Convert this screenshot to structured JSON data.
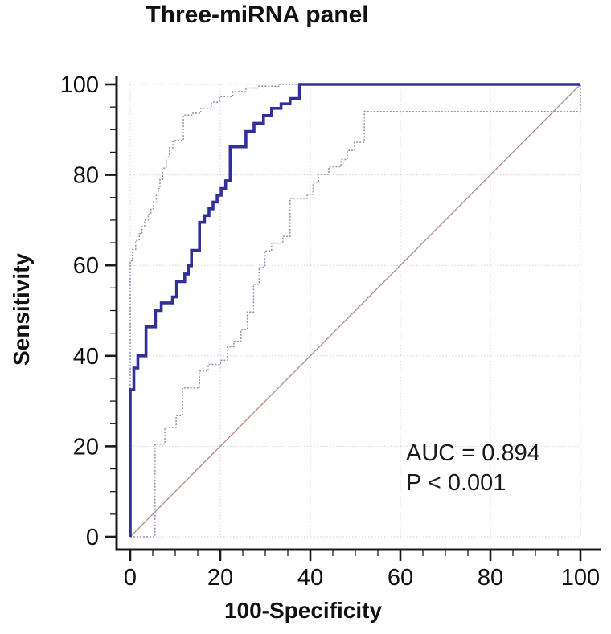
{
  "chart_data": {
    "type": "line",
    "subtype": "roc-curve-with-95ci-bands",
    "title": "Three-miRNA panel",
    "xlabel": "100-Specificity",
    "ylabel": "Sensitivity",
    "xlim": [
      0,
      100
    ],
    "ylim": [
      0,
      100
    ],
    "x_ticks": [
      0,
      20,
      40,
      60,
      80,
      100
    ],
    "y_ticks": [
      0,
      20,
      40,
      60,
      80,
      100
    ],
    "x_tick_labels": [
      "0",
      "20",
      "40",
      "60",
      "80",
      "100"
    ],
    "y_tick_labels": [
      "0",
      "20",
      "40",
      "60",
      "80",
      "100"
    ],
    "minor_tick_step": 5,
    "grid": "dotted-at-major-ticks",
    "legend_position": "none",
    "annotation": {
      "auc_label": "AUC = 0.894",
      "p_label": "P < 0.001"
    },
    "colors": {
      "roc_curve": "#31309b",
      "ci_band": "#8f8fb8",
      "diagonal": "#bc8f8f",
      "gridline": "#cfcfd6",
      "axis": "#1a1a1a",
      "text": "#111111",
      "background": "#ffffff"
    },
    "series": [
      {
        "name": "chance-diagonal",
        "style": "solid-thin",
        "color": "#bc8f8f",
        "width": 1.4,
        "points": [
          [
            0,
            0
          ],
          [
            100,
            100
          ]
        ]
      },
      {
        "name": "upper-95ci-band",
        "style": "dotted",
        "color": "#8f8fb8",
        "width": 1.5,
        "points": [
          [
            0,
            0
          ],
          [
            0,
            61
          ],
          [
            0.5,
            61
          ],
          [
            0.5,
            63.5
          ],
          [
            1.2,
            63.5
          ],
          [
            1.2,
            65.5
          ],
          [
            2,
            65.5
          ],
          [
            2,
            67
          ],
          [
            2.6,
            67
          ],
          [
            2.6,
            68.5
          ],
          [
            3.2,
            68.5
          ],
          [
            3.2,
            70
          ],
          [
            4,
            70
          ],
          [
            4,
            71.3
          ],
          [
            4.6,
            71.3
          ],
          [
            4.6,
            72.5
          ],
          [
            5.2,
            72.5
          ],
          [
            5.2,
            74
          ],
          [
            5.8,
            74
          ],
          [
            5.8,
            75.5
          ],
          [
            6.2,
            75.5
          ],
          [
            6.2,
            77
          ],
          [
            6.6,
            77
          ],
          [
            6.6,
            79
          ],
          [
            7.2,
            79
          ],
          [
            7.2,
            81.5
          ],
          [
            8,
            81.5
          ],
          [
            8,
            84
          ],
          [
            8.7,
            84
          ],
          [
            8.7,
            86
          ],
          [
            9.5,
            86
          ],
          [
            9.5,
            87.6
          ],
          [
            11.8,
            87.6
          ],
          [
            11.8,
            93.2
          ],
          [
            13.9,
            93.2
          ],
          [
            13.9,
            93.6
          ],
          [
            15.7,
            93.6
          ],
          [
            15.7,
            94.7
          ],
          [
            18,
            94.7
          ],
          [
            18,
            96.1
          ],
          [
            19.8,
            96.1
          ],
          [
            19.8,
            97.3
          ],
          [
            22.8,
            97.3
          ],
          [
            22.8,
            98.4
          ],
          [
            25.7,
            98.4
          ],
          [
            25.7,
            99.2
          ],
          [
            28.5,
            99.2
          ],
          [
            28.5,
            99.6
          ],
          [
            33,
            99.6
          ],
          [
            33,
            100
          ],
          [
            100,
            100
          ]
        ]
      },
      {
        "name": "lower-95ci-band",
        "style": "dotted",
        "color": "#8f8fb8",
        "width": 1.5,
        "points": [
          [
            0,
            0
          ],
          [
            5.5,
            0
          ],
          [
            5.5,
            20.5
          ],
          [
            7.7,
            20.5
          ],
          [
            7.7,
            24.2
          ],
          [
            10.2,
            24.2
          ],
          [
            10.2,
            26.8
          ],
          [
            11.6,
            26.8
          ],
          [
            11.6,
            32.9
          ],
          [
            15.4,
            32.9
          ],
          [
            15.4,
            36.6
          ],
          [
            17.3,
            36.6
          ],
          [
            17.3,
            38.1
          ],
          [
            20.1,
            38.1
          ],
          [
            20.1,
            39
          ],
          [
            21.6,
            39
          ],
          [
            21.6,
            42
          ],
          [
            23,
            42
          ],
          [
            23,
            43.2
          ],
          [
            24.6,
            43.2
          ],
          [
            24.6,
            45.8
          ],
          [
            26,
            45.8
          ],
          [
            26,
            49.7
          ],
          [
            27.4,
            49.7
          ],
          [
            27.4,
            55.8
          ],
          [
            28.6,
            55.8
          ],
          [
            28.6,
            59.6
          ],
          [
            29.9,
            59.6
          ],
          [
            29.9,
            63.2
          ],
          [
            31.4,
            63.2
          ],
          [
            31.4,
            64.9
          ],
          [
            33.9,
            64.9
          ],
          [
            33.9,
            66.4
          ],
          [
            35.5,
            66.4
          ],
          [
            35.5,
            74.8
          ],
          [
            39.3,
            74.8
          ],
          [
            39.3,
            75.7
          ],
          [
            40.6,
            75.7
          ],
          [
            40.6,
            78.4
          ],
          [
            41.8,
            78.4
          ],
          [
            41.8,
            80.1
          ],
          [
            44.1,
            80.1
          ],
          [
            44.1,
            81.8
          ],
          [
            46.8,
            81.8
          ],
          [
            46.8,
            83.4
          ],
          [
            48.2,
            83.4
          ],
          [
            48.2,
            85.4
          ],
          [
            49.8,
            85.4
          ],
          [
            49.8,
            87.2
          ],
          [
            52,
            87.2
          ],
          [
            52,
            94
          ],
          [
            100,
            94
          ],
          [
            100,
            100
          ]
        ]
      },
      {
        "name": "roc-curve",
        "style": "solid",
        "color": "#31309b",
        "width": 3.6,
        "points": [
          [
            0,
            0
          ],
          [
            0,
            32.5
          ],
          [
            0.8,
            32.5
          ],
          [
            0.8,
            37.3
          ],
          [
            1.7,
            37.3
          ],
          [
            1.7,
            40
          ],
          [
            3.5,
            40
          ],
          [
            3.5,
            46.4
          ],
          [
            5.6,
            46.4
          ],
          [
            5.6,
            50
          ],
          [
            6.9,
            50
          ],
          [
            6.9,
            51.7
          ],
          [
            9.4,
            51.7
          ],
          [
            9.4,
            53
          ],
          [
            10.3,
            53
          ],
          [
            10.3,
            56.4
          ],
          [
            12.1,
            56.4
          ],
          [
            12.1,
            58.1
          ],
          [
            12.9,
            58.1
          ],
          [
            12.9,
            59.9
          ],
          [
            13.6,
            59.9
          ],
          [
            13.6,
            63.3
          ],
          [
            15.4,
            63.3
          ],
          [
            15.4,
            69.5
          ],
          [
            16.5,
            69.5
          ],
          [
            16.5,
            71
          ],
          [
            17.5,
            71
          ],
          [
            17.5,
            72.5
          ],
          [
            18.4,
            72.5
          ],
          [
            18.4,
            74
          ],
          [
            19.3,
            74
          ],
          [
            19.3,
            75.5
          ],
          [
            20.2,
            75.5
          ],
          [
            20.2,
            77
          ],
          [
            21.2,
            77
          ],
          [
            21.2,
            78.7
          ],
          [
            22.2,
            78.7
          ],
          [
            22.2,
            86.2
          ],
          [
            25.7,
            86.2
          ],
          [
            25.7,
            89.6
          ],
          [
            27.5,
            89.6
          ],
          [
            27.5,
            91.4
          ],
          [
            29.6,
            91.4
          ],
          [
            29.6,
            93.1
          ],
          [
            31.4,
            93.1
          ],
          [
            31.4,
            94.7
          ],
          [
            33.5,
            94.7
          ],
          [
            33.5,
            95.7
          ],
          [
            35.5,
            95.7
          ],
          [
            35.5,
            96.9
          ],
          [
            37.6,
            96.9
          ],
          [
            37.6,
            100
          ],
          [
            100,
            100
          ]
        ]
      }
    ]
  }
}
